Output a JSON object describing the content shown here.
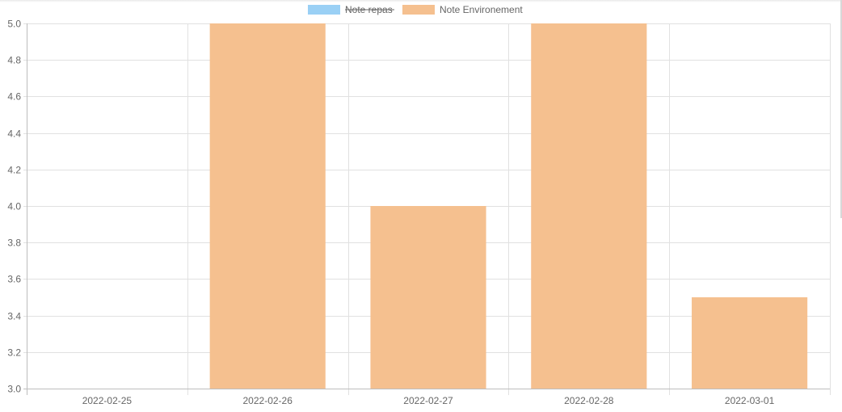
{
  "chart_data": {
    "type": "bar",
    "categories": [
      "2022-02-25",
      "2022-02-26",
      "2022-02-27",
      "2022-02-28",
      "2022-03-01"
    ],
    "series": [
      {
        "name": "Note repas",
        "values": [
          null,
          null,
          null,
          null,
          null
        ],
        "color": "#9ad0f5",
        "hidden": true
      },
      {
        "name": "Note Environement",
        "values": [
          null,
          5.0,
          4.0,
          5.0,
          3.5
        ],
        "color": "#f5c08f",
        "hidden": false
      }
    ],
    "ylim": [
      3.0,
      5.0
    ],
    "yticks": [
      "5.0",
      "4.8",
      "4.6",
      "4.4",
      "4.2",
      "4.0",
      "3.8",
      "3.6",
      "3.4",
      "3.2",
      "3.0"
    ],
    "grid": true,
    "legend_position": "top"
  }
}
